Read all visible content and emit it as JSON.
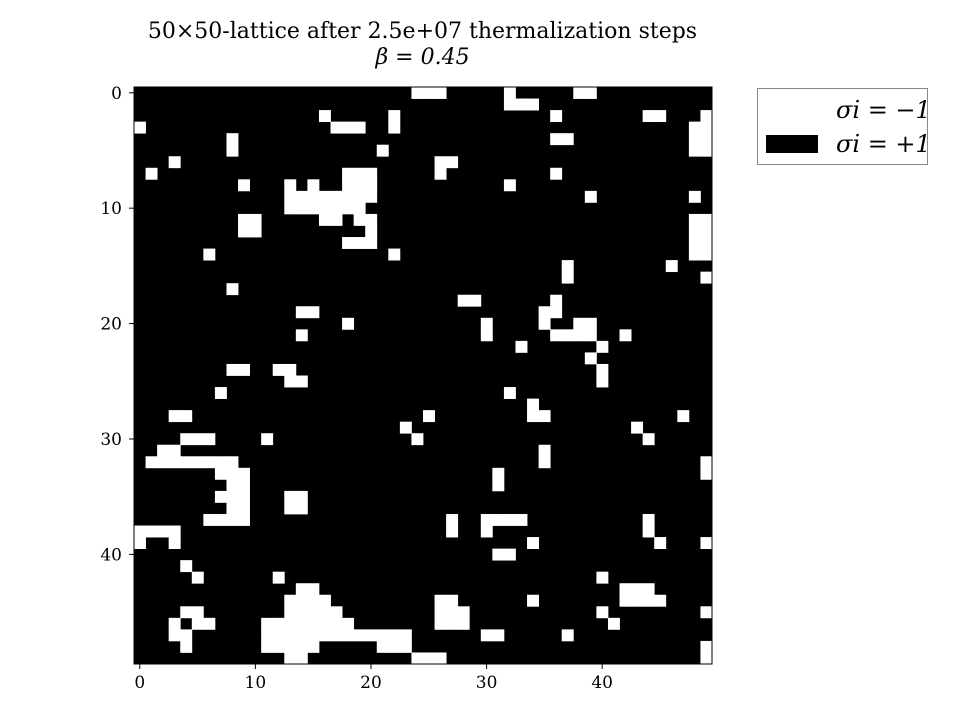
{
  "chart_data": {
    "type": "heatmap",
    "title": "50×50-lattice after 2.5e+07 thermalization steps",
    "subtitle": "β = 0.45",
    "xlabel": "",
    "ylabel": "",
    "grid": false,
    "x_ticks": [
      "0",
      "10",
      "20",
      "30",
      "40"
    ],
    "y_ticks": [
      "0",
      "10",
      "20",
      "30",
      "40"
    ],
    "xlim": [
      0,
      50
    ],
    "ylim": [
      0,
      50
    ],
    "colormap": {
      "-1": "#ffffff",
      "+1": "#000000"
    },
    "legend": {
      "placement": "outside-top-right",
      "entries": [
        {
          "label": "σi = −1",
          "color": "#ffffff"
        },
        {
          "label": "σi = +1",
          "color": "#000000"
        }
      ]
    },
    "spin_minus_one_cells": [
      [
        0,
        24
      ],
      [
        0,
        25
      ],
      [
        0,
        26
      ],
      [
        0,
        32
      ],
      [
        0,
        38
      ],
      [
        0,
        39
      ],
      [
        1,
        32
      ],
      [
        1,
        33
      ],
      [
        1,
        34
      ],
      [
        2,
        16
      ],
      [
        2,
        22
      ],
      [
        2,
        36
      ],
      [
        2,
        44
      ],
      [
        2,
        45
      ],
      [
        2,
        49
      ],
      [
        3,
        0
      ],
      [
        3,
        17
      ],
      [
        3,
        18
      ],
      [
        3,
        19
      ],
      [
        3,
        22
      ],
      [
        3,
        48
      ],
      [
        3,
        49
      ],
      [
        4,
        8
      ],
      [
        4,
        36
      ],
      [
        4,
        37
      ],
      [
        4,
        48
      ],
      [
        4,
        49
      ],
      [
        5,
        8
      ],
      [
        5,
        21
      ],
      [
        5,
        48
      ],
      [
        5,
        49
      ],
      [
        6,
        3
      ],
      [
        6,
        26
      ],
      [
        6,
        27
      ],
      [
        7,
        1
      ],
      [
        7,
        18
      ],
      [
        7,
        19
      ],
      [
        7,
        20
      ],
      [
        7,
        26
      ],
      [
        7,
        36
      ],
      [
        8,
        9
      ],
      [
        8,
        13
      ],
      [
        8,
        15
      ],
      [
        8,
        18
      ],
      [
        8,
        19
      ],
      [
        8,
        20
      ],
      [
        8,
        32
      ],
      [
        9,
        13
      ],
      [
        9,
        14
      ],
      [
        9,
        15
      ],
      [
        9,
        16
      ],
      [
        9,
        17
      ],
      [
        9,
        18
      ],
      [
        9,
        19
      ],
      [
        9,
        20
      ],
      [
        9,
        39
      ],
      [
        9,
        48
      ],
      [
        10,
        13
      ],
      [
        10,
        14
      ],
      [
        10,
        15
      ],
      [
        10,
        16
      ],
      [
        10,
        17
      ],
      [
        10,
        18
      ],
      [
        10,
        19
      ],
      [
        11,
        9
      ],
      [
        11,
        10
      ],
      [
        11,
        16
      ],
      [
        11,
        17
      ],
      [
        11,
        19
      ],
      [
        11,
        20
      ],
      [
        11,
        48
      ],
      [
        11,
        49
      ],
      [
        12,
        9
      ],
      [
        12,
        10
      ],
      [
        12,
        20
      ],
      [
        12,
        48
      ],
      [
        12,
        49
      ],
      [
        13,
        18
      ],
      [
        13,
        19
      ],
      [
        13,
        20
      ],
      [
        13,
        48
      ],
      [
        13,
        49
      ],
      [
        14,
        6
      ],
      [
        14,
        22
      ],
      [
        14,
        48
      ],
      [
        14,
        49
      ],
      [
        15,
        37
      ],
      [
        15,
        46
      ],
      [
        16,
        37
      ],
      [
        16,
        49
      ],
      [
        17,
        8
      ],
      [
        18,
        28
      ],
      [
        18,
        29
      ],
      [
        18,
        36
      ],
      [
        19,
        14
      ],
      [
        19,
        15
      ],
      [
        19,
        35
      ],
      [
        19,
        36
      ],
      [
        20,
        18
      ],
      [
        20,
        30
      ],
      [
        20,
        35
      ],
      [
        20,
        38
      ],
      [
        20,
        39
      ],
      [
        21,
        14
      ],
      [
        21,
        30
      ],
      [
        21,
        36
      ],
      [
        21,
        37
      ],
      [
        21,
        38
      ],
      [
        21,
        39
      ],
      [
        21,
        42
      ],
      [
        22,
        33
      ],
      [
        22,
        40
      ],
      [
        23,
        39
      ],
      [
        24,
        8
      ],
      [
        24,
        9
      ],
      [
        24,
        12
      ],
      [
        24,
        13
      ],
      [
        24,
        40
      ],
      [
        25,
        13
      ],
      [
        25,
        14
      ],
      [
        25,
        40
      ],
      [
        26,
        7
      ],
      [
        26,
        32
      ],
      [
        27,
        34
      ],
      [
        28,
        3
      ],
      [
        28,
        4
      ],
      [
        28,
        25
      ],
      [
        28,
        34
      ],
      [
        28,
        35
      ],
      [
        28,
        47
      ],
      [
        29,
        23
      ],
      [
        29,
        43
      ],
      [
        30,
        4
      ],
      [
        30,
        5
      ],
      [
        30,
        6
      ],
      [
        30,
        11
      ],
      [
        30,
        24
      ],
      [
        30,
        44
      ],
      [
        31,
        2
      ],
      [
        31,
        3
      ],
      [
        31,
        35
      ],
      [
        32,
        1
      ],
      [
        32,
        2
      ],
      [
        32,
        3
      ],
      [
        32,
        4
      ],
      [
        32,
        5
      ],
      [
        32,
        6
      ],
      [
        32,
        7
      ],
      [
        32,
        8
      ],
      [
        32,
        35
      ],
      [
        32,
        49
      ],
      [
        33,
        7
      ],
      [
        33,
        8
      ],
      [
        33,
        9
      ],
      [
        33,
        31
      ],
      [
        33,
        49
      ],
      [
        34,
        8
      ],
      [
        34,
        9
      ],
      [
        34,
        31
      ],
      [
        35,
        7
      ],
      [
        35,
        8
      ],
      [
        35,
        9
      ],
      [
        35,
        13
      ],
      [
        35,
        14
      ],
      [
        36,
        8
      ],
      [
        36,
        9
      ],
      [
        36,
        13
      ],
      [
        36,
        14
      ],
      [
        37,
        6
      ],
      [
        37,
        7
      ],
      [
        37,
        8
      ],
      [
        37,
        9
      ],
      [
        37,
        27
      ],
      [
        37,
        30
      ],
      [
        37,
        31
      ],
      [
        37,
        32
      ],
      [
        37,
        33
      ],
      [
        37,
        44
      ],
      [
        38,
        0
      ],
      [
        38,
        1
      ],
      [
        38,
        2
      ],
      [
        38,
        3
      ],
      [
        38,
        27
      ],
      [
        38,
        30
      ],
      [
        38,
        44
      ],
      [
        39,
        0
      ],
      [
        39,
        3
      ],
      [
        39,
        34
      ],
      [
        39,
        45
      ],
      [
        39,
        49
      ],
      [
        40,
        31
      ],
      [
        40,
        32
      ],
      [
        41,
        4
      ],
      [
        42,
        5
      ],
      [
        42,
        12
      ],
      [
        42,
        40
      ],
      [
        43,
        14
      ],
      [
        43,
        15
      ],
      [
        43,
        42
      ],
      [
        43,
        43
      ],
      [
        43,
        44
      ],
      [
        44,
        13
      ],
      [
        44,
        14
      ],
      [
        44,
        15
      ],
      [
        44,
        16
      ],
      [
        44,
        26
      ],
      [
        44,
        27
      ],
      [
        44,
        34
      ],
      [
        44,
        42
      ],
      [
        44,
        43
      ],
      [
        44,
        44
      ],
      [
        44,
        45
      ],
      [
        45,
        4
      ],
      [
        45,
        5
      ],
      [
        45,
        13
      ],
      [
        45,
        14
      ],
      [
        45,
        15
      ],
      [
        45,
        16
      ],
      [
        45,
        17
      ],
      [
        45,
        26
      ],
      [
        45,
        27
      ],
      [
        45,
        28
      ],
      [
        45,
        40
      ],
      [
        45,
        49
      ],
      [
        46,
        3
      ],
      [
        46,
        5
      ],
      [
        46,
        6
      ],
      [
        46,
        11
      ],
      [
        46,
        12
      ],
      [
        46,
        13
      ],
      [
        46,
        14
      ],
      [
        46,
        15
      ],
      [
        46,
        16
      ],
      [
        46,
        17
      ],
      [
        46,
        18
      ],
      [
        46,
        26
      ],
      [
        46,
        27
      ],
      [
        46,
        28
      ],
      [
        46,
        41
      ],
      [
        47,
        3
      ],
      [
        47,
        4
      ],
      [
        47,
        11
      ],
      [
        47,
        12
      ],
      [
        47,
        13
      ],
      [
        47,
        14
      ],
      [
        47,
        15
      ],
      [
        47,
        16
      ],
      [
        47,
        17
      ],
      [
        47,
        18
      ],
      [
        47,
        19
      ],
      [
        47,
        20
      ],
      [
        47,
        21
      ],
      [
        47,
        22
      ],
      [
        47,
        23
      ],
      [
        47,
        30
      ],
      [
        47,
        31
      ],
      [
        47,
        37
      ],
      [
        48,
        4
      ],
      [
        48,
        11
      ],
      [
        48,
        12
      ],
      [
        48,
        13
      ],
      [
        48,
        14
      ],
      [
        48,
        15
      ],
      [
        48,
        21
      ],
      [
        48,
        22
      ],
      [
        48,
        23
      ],
      [
        48,
        49
      ],
      [
        49,
        13
      ],
      [
        49,
        14
      ],
      [
        49,
        24
      ],
      [
        49,
        25
      ],
      [
        49,
        26
      ],
      [
        49,
        49
      ]
    ]
  }
}
